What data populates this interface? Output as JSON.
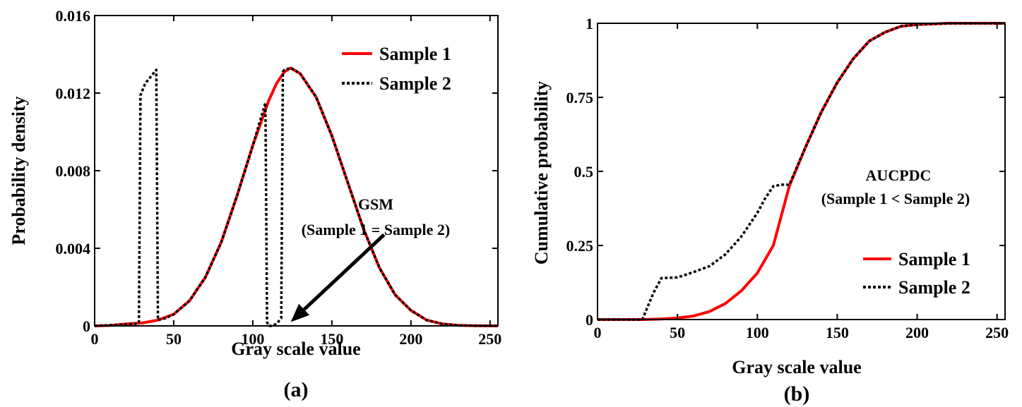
{
  "chart_data": [
    {
      "id": "a",
      "type": "line",
      "panel_label": "(a)",
      "xlabel": "Gray scale value",
      "ylabel": "Probability density",
      "xlim": [
        0,
        255
      ],
      "ylim": [
        0,
        0.016
      ],
      "x_ticks": [
        "0",
        "50",
        "100",
        "150",
        "200",
        "250"
      ],
      "y_ticks": [
        "0",
        "0.004",
        "0.008",
        "0.012",
        "0.016"
      ],
      "legend_position": "top-right",
      "series": [
        {
          "name": "Sample 1",
          "color": "#ff0000",
          "style": "solid",
          "x": [
            0,
            10,
            20,
            30,
            40,
            50,
            60,
            70,
            80,
            90,
            100,
            110,
            115,
            120,
            124,
            130,
            140,
            150,
            160,
            170,
            180,
            190,
            200,
            210,
            220,
            230,
            240,
            255
          ],
          "y": [
            0.0,
            2e-05,
            0.0001,
            0.00015,
            0.0003,
            0.0006,
            0.0013,
            0.0025,
            0.0043,
            0.0067,
            0.0093,
            0.0116,
            0.0125,
            0.0131,
            0.0133,
            0.013,
            0.0118,
            0.0098,
            0.0074,
            0.005,
            0.003,
            0.0016,
            0.0008,
            0.0003,
            0.0001,
            3e-05,
            1e-05,
            0.0
          ]
        },
        {
          "name": "Sample 2",
          "color": "#000000",
          "style": "dotted",
          "x": [
            0,
            25,
            28,
            29,
            30,
            32,
            35,
            38,
            39,
            40,
            45,
            50,
            60,
            70,
            80,
            90,
            100,
            108,
            109,
            110,
            112,
            115,
            118,
            119,
            120,
            124,
            130,
            140,
            150,
            160,
            170,
            180,
            190,
            200,
            210,
            220,
            230,
            240,
            255
          ],
          "y": [
            0.0,
            0.0001,
            0.00015,
            0.0119,
            0.0121,
            0.0125,
            0.0128,
            0.0131,
            0.0132,
            0.0003,
            0.0004,
            0.0006,
            0.0013,
            0.0025,
            0.0043,
            0.0067,
            0.0093,
            0.0115,
            0.0002,
            0.0,
            0.0,
            0.0001,
            0.0004,
            0.0131,
            0.0132,
            0.0133,
            0.013,
            0.0118,
            0.0098,
            0.0074,
            0.005,
            0.003,
            0.0016,
            0.0008,
            0.0003,
            0.0001,
            3e-05,
            1e-05,
            0.0
          ]
        }
      ],
      "annotation": {
        "line1": "GSM",
        "line2": "(Sample 1 = Sample 2)",
        "arrow_to": [
          124,
          0.0002
        ],
        "arrow_from": [
          183,
          0.0047
        ]
      }
    },
    {
      "id": "b",
      "type": "line",
      "panel_label": "(b)",
      "xlabel": "Gray scale value",
      "ylabel": "Cumulative probability",
      "xlim": [
        0,
        255
      ],
      "ylim": [
        0,
        1
      ],
      "x_ticks": [
        "0",
        "50",
        "100",
        "150",
        "200",
        "250"
      ],
      "y_ticks": [
        "0",
        "0.25",
        "0.5",
        "0.75",
        "1"
      ],
      "legend_position": "bottom-right",
      "series": [
        {
          "name": "Sample 1",
          "color": "#ff0000",
          "style": "solid",
          "x": [
            0,
            28,
            40,
            50,
            60,
            70,
            80,
            90,
            100,
            110,
            120,
            130,
            140,
            150,
            160,
            170,
            180,
            190,
            200,
            220,
            255
          ],
          "y": [
            0.0,
            0.0,
            0.002,
            0.005,
            0.012,
            0.027,
            0.054,
            0.097,
            0.157,
            0.25,
            0.45,
            0.58,
            0.7,
            0.8,
            0.88,
            0.94,
            0.97,
            0.99,
            0.996,
            1.0,
            1.0
          ]
        },
        {
          "name": "Sample 2",
          "color": "#000000",
          "style": "dotted",
          "x": [
            0,
            28,
            35,
            40,
            50,
            60,
            70,
            80,
            90,
            100,
            105,
            110,
            115,
            120,
            130,
            140,
            150,
            160,
            170,
            180,
            190,
            200,
            220,
            255
          ],
          "y": [
            0.0,
            0.0,
            0.09,
            0.14,
            0.142,
            0.16,
            0.18,
            0.22,
            0.28,
            0.36,
            0.41,
            0.45,
            0.455,
            0.455,
            0.58,
            0.7,
            0.8,
            0.88,
            0.94,
            0.97,
            0.99,
            0.996,
            1.0,
            1.0
          ]
        }
      ],
      "annotation": {
        "line1": "AUCPDC",
        "line2": "(Sample 1 < Sample 2)"
      }
    }
  ]
}
